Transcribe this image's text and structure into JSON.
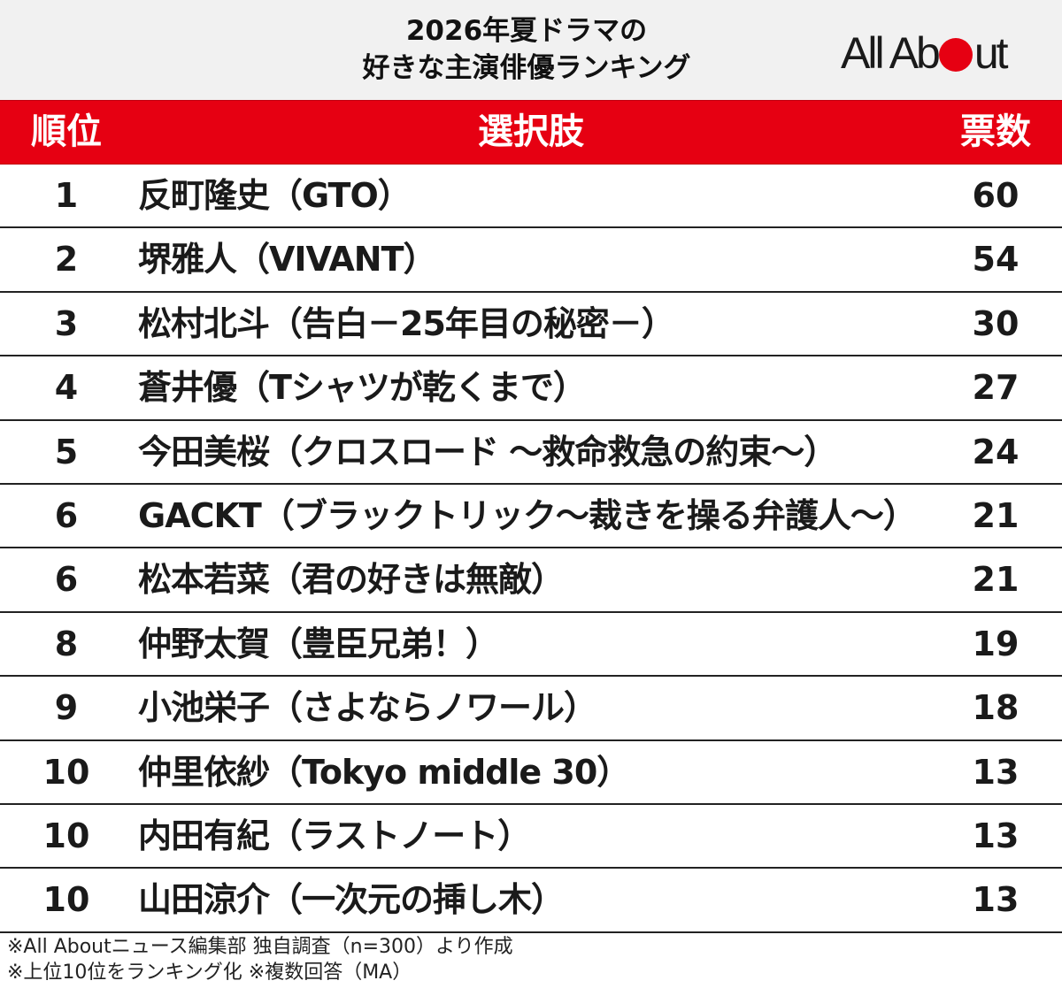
{
  "header": {
    "title_line1": "2026年夏ドラマの",
    "title_line2": "好きな主演俳優ランキング",
    "logo_before": "All Ab",
    "logo_after": "ut",
    "logo_dot_color": "#e60012"
  },
  "table": {
    "header_color": "#e60012",
    "columns": {
      "rank": "順位",
      "choice": "選択肢",
      "votes": "票数"
    },
    "rows": [
      {
        "rank": "1",
        "name": "反町隆史（GTO）",
        "votes": "60"
      },
      {
        "rank": "2",
        "name": "堺雅人（VIVANT）",
        "votes": "54"
      },
      {
        "rank": "3",
        "name": "松村北斗（告白－25年目の秘密－）",
        "votes": "30"
      },
      {
        "rank": "4",
        "name": "蒼井優（Tシャツが乾くまで）",
        "votes": "27"
      },
      {
        "rank": "5",
        "name": "今田美桜（クロスロード ～救命救急の約束～）",
        "votes": "24"
      },
      {
        "rank": "6",
        "name": "GACKT（ブラックトリック～裁きを操る弁護人～）",
        "votes": "21"
      },
      {
        "rank": "6",
        "name": "松本若菜（君の好きは無敵）",
        "votes": "21"
      },
      {
        "rank": "8",
        "name": "仲野太賀（豊臣兄弟！）",
        "votes": "19"
      },
      {
        "rank": "9",
        "name": "小池栄子（さよならノワール）",
        "votes": "18"
      },
      {
        "rank": "10",
        "name": "仲里依紗（Tokyo middle 30）",
        "votes": "13"
      },
      {
        "rank": "10",
        "name": "内田有紀（ラストノート）",
        "votes": "13"
      },
      {
        "rank": "10",
        "name": "山田涼介（一次元の挿し木）",
        "votes": "13"
      }
    ]
  },
  "footnotes": {
    "line1": "※All Aboutニュース編集部 独自調査（n=300）より作成",
    "line2": "※上位10位をランキング化 ※複数回答（MA）"
  }
}
